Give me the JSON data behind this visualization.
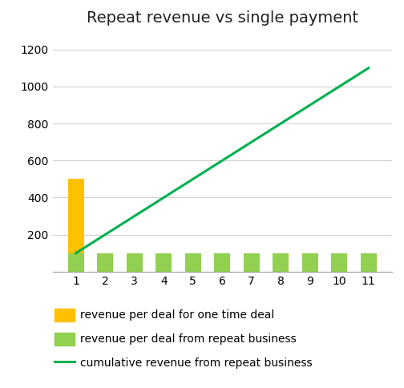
{
  "title": "Repeat revenue vs single payment",
  "x_values": [
    1,
    2,
    3,
    4,
    5,
    6,
    7,
    8,
    9,
    10,
    11
  ],
  "one_time_deal": [
    500,
    0,
    0,
    0,
    0,
    0,
    0,
    0,
    0,
    0,
    0
  ],
  "repeat_business": [
    100,
    100,
    100,
    100,
    100,
    100,
    100,
    100,
    100,
    100,
    100
  ],
  "cumulative_repeat": [
    100,
    200,
    300,
    400,
    500,
    600,
    700,
    800,
    900,
    1000,
    1100
  ],
  "bar_color_one_time": "#FFC000",
  "bar_color_repeat": "#92D050",
  "line_color": "#00B050",
  "ylim": [
    0,
    1300
  ],
  "yticks": [
    0,
    200,
    400,
    600,
    800,
    1000,
    1200
  ],
  "background_color": "#FFFFFF",
  "legend_labels": [
    "revenue per deal for one time deal",
    "revenue per deal from repeat business",
    "cumulative revenue from repeat business"
  ],
  "title_fontsize": 14,
  "tick_fontsize": 10,
  "legend_fontsize": 10,
  "bar_width": 0.55,
  "line_width": 2.2
}
